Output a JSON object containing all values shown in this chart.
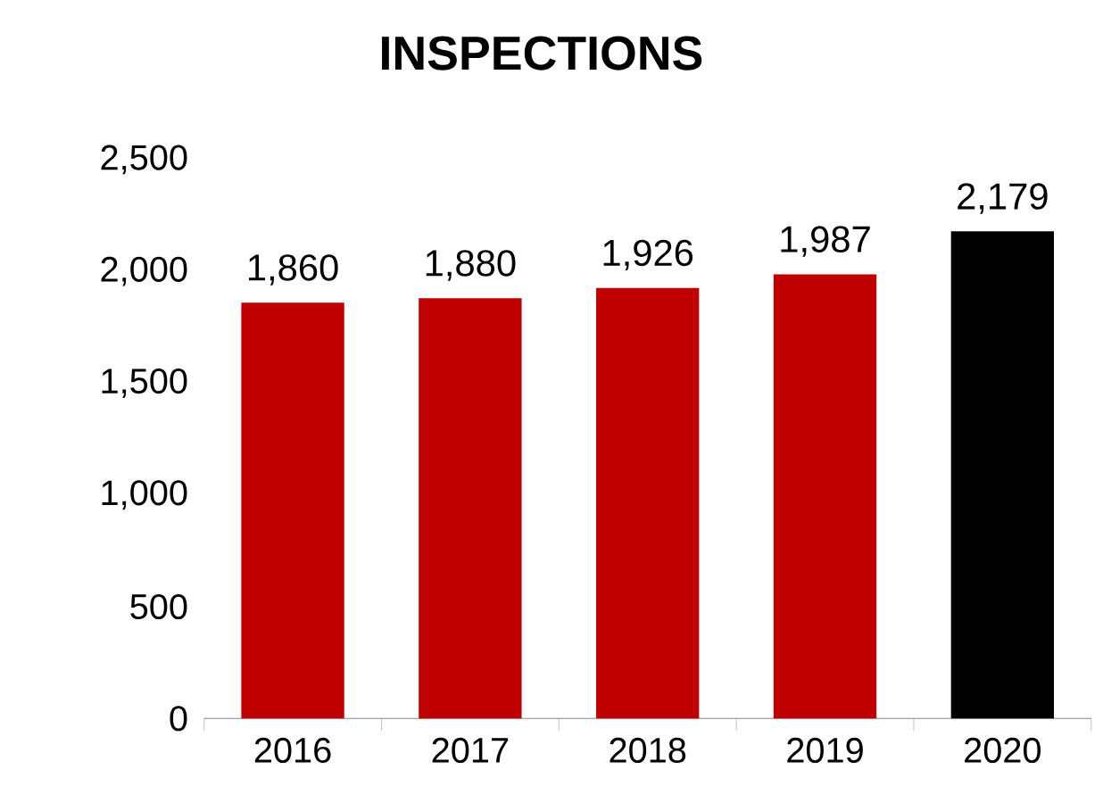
{
  "chart_data": {
    "type": "bar",
    "title": "INSPECTIONS",
    "categories": [
      "2016",
      "2017",
      "2018",
      "2019",
      "2020"
    ],
    "values": [
      1860,
      1880,
      1926,
      1987,
      2179
    ],
    "colors": [
      "#c00000",
      "#c00000",
      "#c00000",
      "#c00000",
      "#000000"
    ],
    "value_labels": [
      "1,860",
      "1,880",
      "1,926",
      "1,987",
      "2,179"
    ],
    "ylim": [
      0,
      2500
    ],
    "yticks": [
      0,
      500,
      {
        "value": 1000,
        "label": "1,000"
      },
      {
        "value": 1500,
        "label": "1,500"
      },
      {
        "value": 2000,
        "label": "2,000"
      },
      {
        "value": 2500,
        "label": "2,500"
      }
    ],
    "grid": false
  }
}
